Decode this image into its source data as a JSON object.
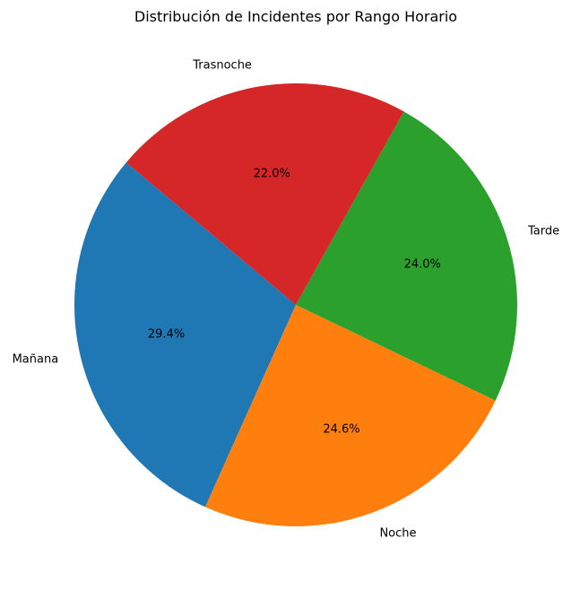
{
  "chart_data": {
    "type": "pie",
    "title": "Distribución de Incidentes por Rango Horario",
    "categories": [
      "Mañana",
      "Noche",
      "Tarde",
      "Trasnoche"
    ],
    "values": [
      29.4,
      24.6,
      24.0,
      22.0
    ],
    "percent_labels": [
      "29.4%",
      "24.6%",
      "24.0%",
      "22.0%"
    ],
    "colors": [
      "#1f77b4",
      "#ff7f0e",
      "#2ca02c",
      "#d62728"
    ],
    "start_angle_deg": 140,
    "direction": "counterclockwise"
  }
}
